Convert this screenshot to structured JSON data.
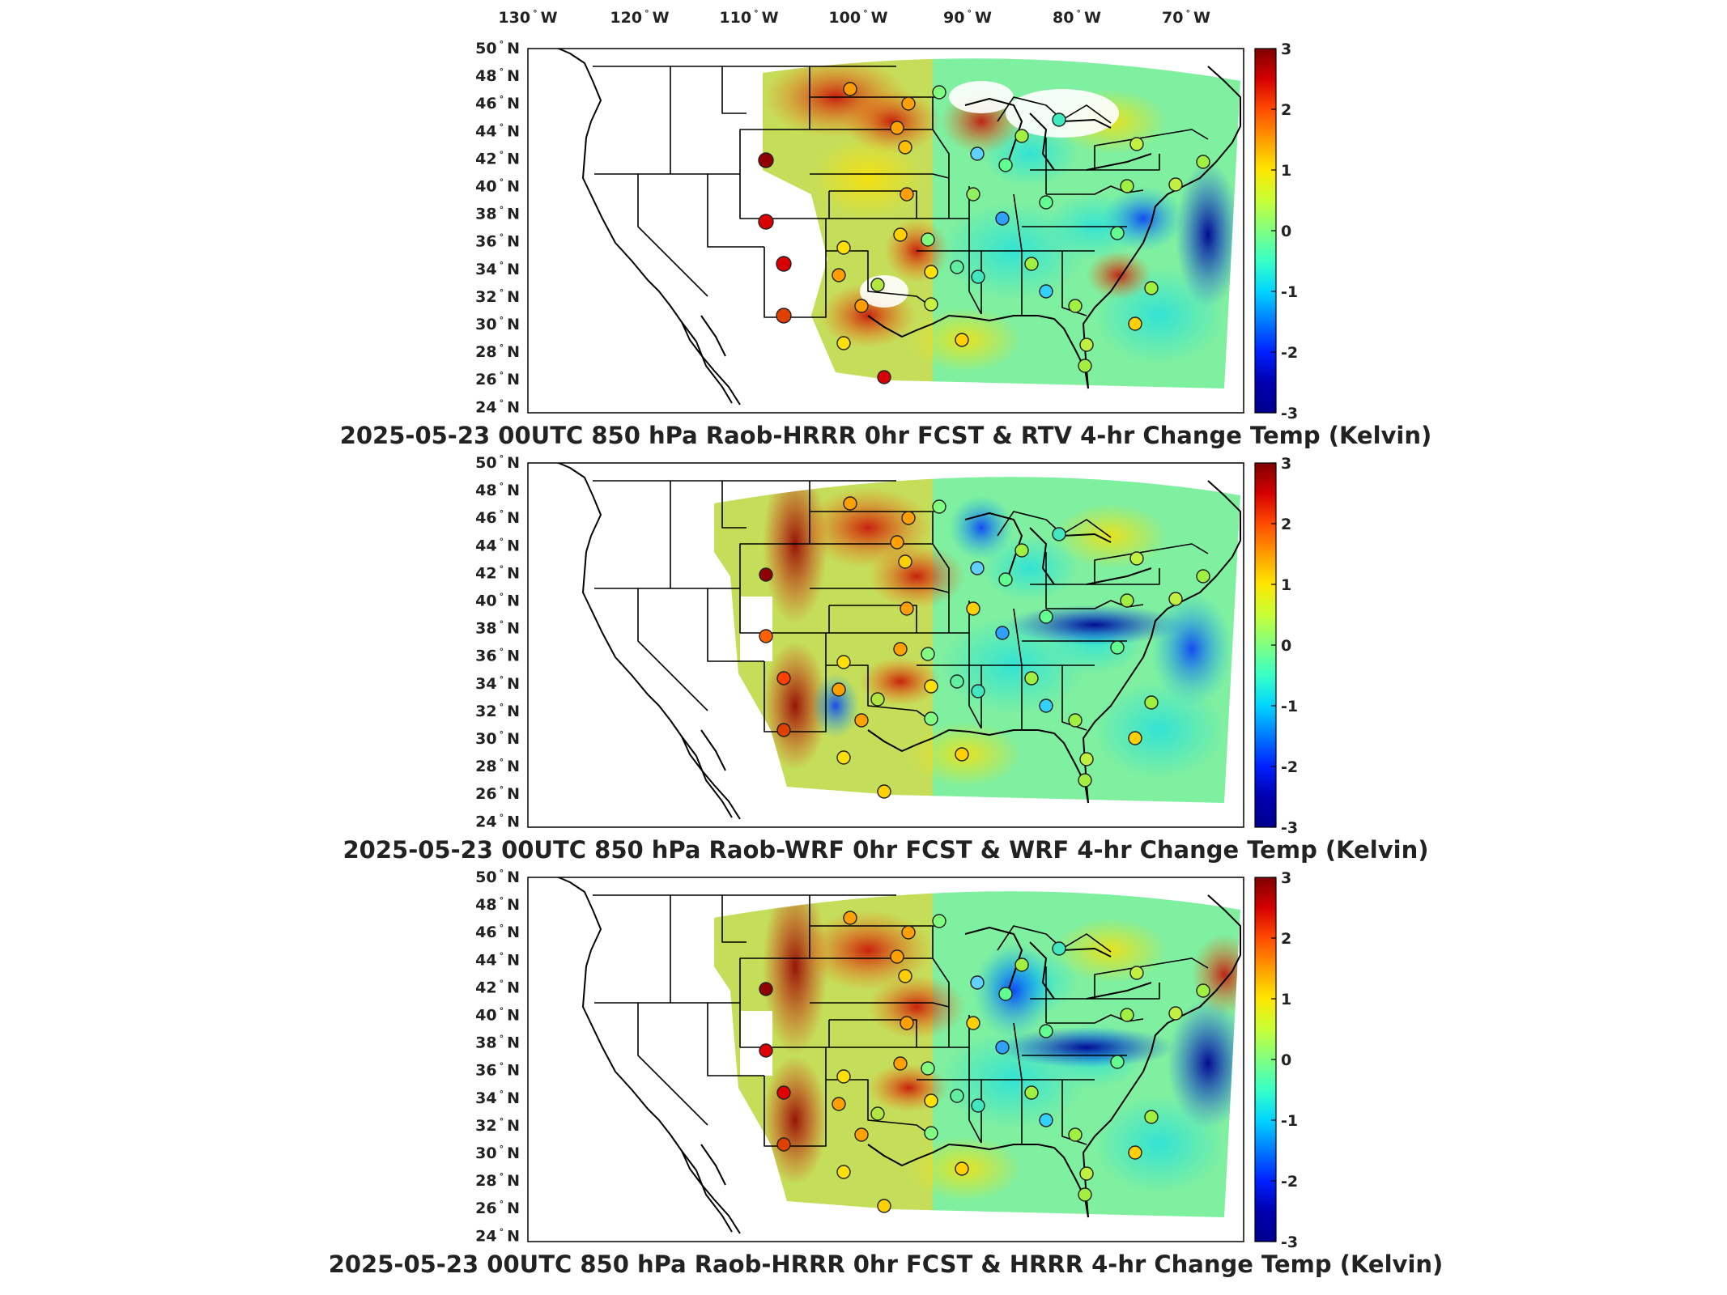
{
  "longitude_labels": [
    "130",
    "120",
    "110",
    "100",
    "90",
    "80",
    "70"
  ],
  "longitude_suffix": "W",
  "latitude_labels": [
    "50",
    "48",
    "46",
    "44",
    "42",
    "40",
    "38",
    "36",
    "34",
    "32",
    "30",
    "28",
    "26",
    "24"
  ],
  "latitude_suffix": "N",
  "degree_symbol": "°",
  "colorbar": {
    "ticks": [
      "3",
      "2",
      "1",
      "0",
      "-1",
      "-2",
      "-3"
    ],
    "colors": [
      "#7f0000",
      "#d40000",
      "#ff4b00",
      "#ff9c00",
      "#ffe600",
      "#c7ff38",
      "#7fff80",
      "#38ffc7",
      "#00d4ff",
      "#0079ff",
      "#0020ff",
      "#0000b0",
      "#00008f"
    ]
  },
  "panels": [
    {
      "title": "2025-05-23 00UTC 850 hPa Raob-HRRR 0hr FCST & RTV 4-hr Change Temp (Kelvin)"
    },
    {
      "title": "2025-05-23 00UTC 850 hPa Raob-WRF 0hr FCST & WRF 4-hr Change Temp (Kelvin)"
    },
    {
      "title": "2025-05-23 00UTC 850 hPa Raob-HRRR 0hr FCST & HRRR 4-hr Change Temp (Kelvin)"
    }
  ]
}
